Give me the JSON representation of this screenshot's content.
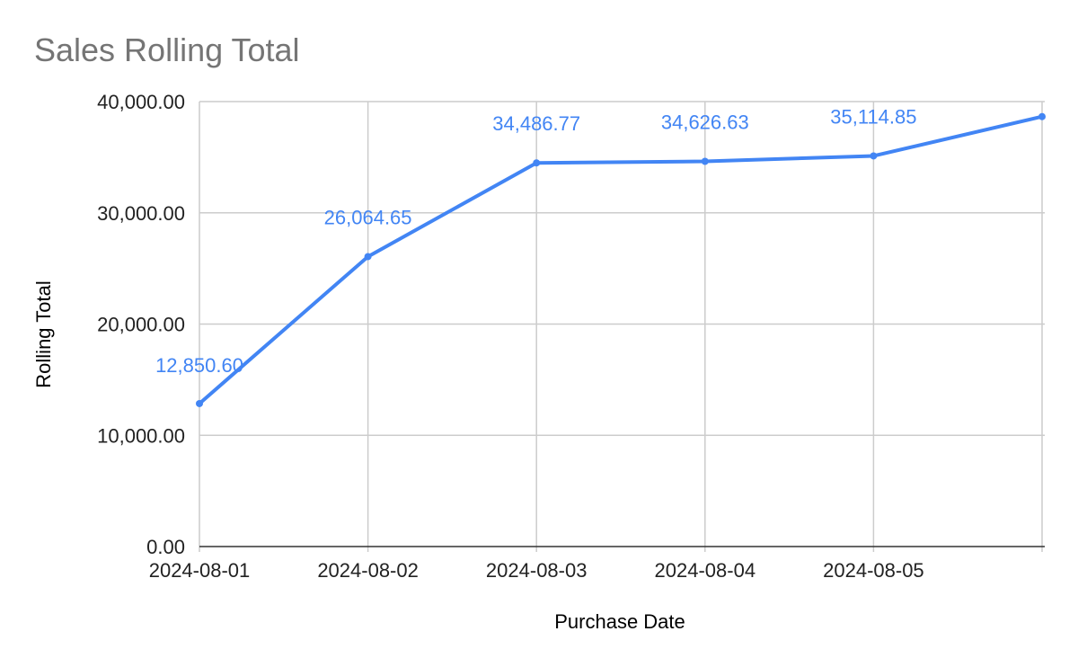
{
  "chart_data": {
    "type": "line",
    "title": "Sales Rolling Total",
    "xlabel": "Purchase Date",
    "ylabel": "Rolling Total",
    "ylim": [
      0,
      40000
    ],
    "yticks": [
      "0.00",
      "10,000.00",
      "20,000.00",
      "30,000.00",
      "40,000.00"
    ],
    "ytick_values": [
      0,
      10000,
      20000,
      30000,
      40000
    ],
    "categories": [
      "2024-08-01",
      "2024-08-02",
      "2024-08-03",
      "2024-08-04",
      "2024-08-05",
      ""
    ],
    "grid": true,
    "series": [
      {
        "values": [
          12850.6,
          26064.65,
          34486.77,
          34626.63,
          35114.85,
          38650
        ],
        "data_labels": [
          "12,850.60",
          "26,064.65",
          "34,486.77",
          "34,626.63",
          "35,114.85",
          ""
        ],
        "color": "#4285f4"
      }
    ]
  }
}
